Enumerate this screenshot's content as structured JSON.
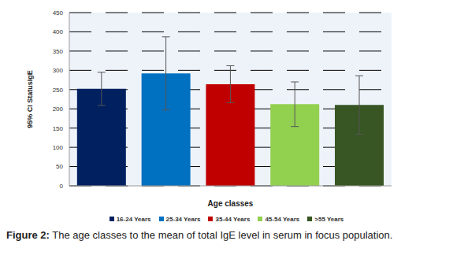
{
  "chart_data": {
    "type": "bar",
    "title": "Figure 2: The age classes to the mean of total IgE level in serum in focus population.",
    "x_label": "Age classes",
    "y_label": "95% CI StatusIgE",
    "categories": [
      "16-24 Years",
      "25-34 Years",
      "35-44 Years",
      "45-54 Years",
      ">55 Years"
    ],
    "values": [
      252,
      292,
      264,
      212,
      210
    ],
    "errors": [
      43,
      95,
      48,
      58,
      76
    ],
    "colors": [
      "#002060",
      "#0070c0",
      "#c00000",
      "#92d050",
      "#375623"
    ],
    "ylim": [
      0,
      450
    ],
    "yticks": [
      0,
      50,
      100,
      150,
      200,
      250,
      300,
      350,
      400,
      450
    ],
    "grid": true,
    "legend": "bottom",
    "tick_labels": "y"
  }
}
